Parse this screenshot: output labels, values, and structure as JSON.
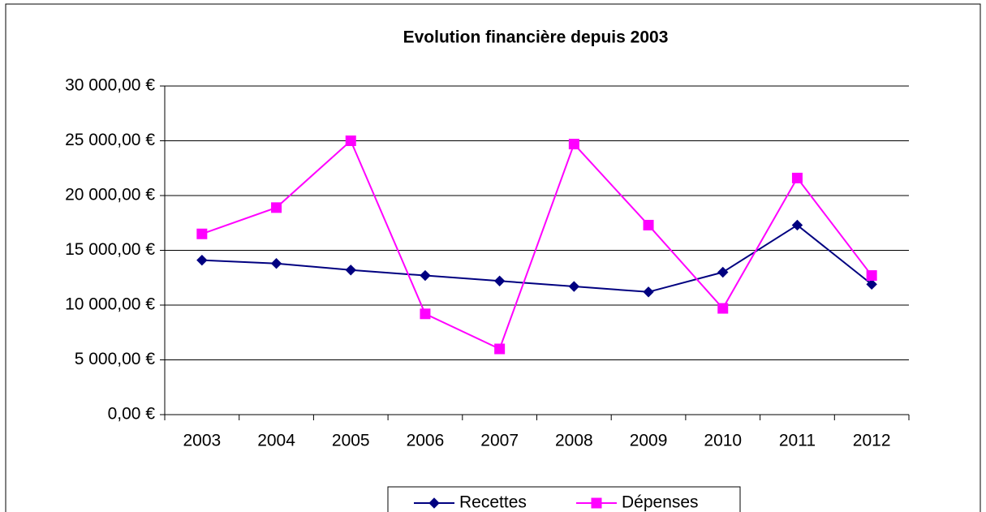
{
  "chart_data": {
    "type": "line",
    "title": "Evolution financière depuis 2003",
    "categories": [
      "2003",
      "2004",
      "2005",
      "2006",
      "2007",
      "2008",
      "2009",
      "2010",
      "2011",
      "2012"
    ],
    "series": [
      {
        "name": "Recettes",
        "color": "#000080",
        "marker": "diamond",
        "values": [
          14100,
          13800,
          13200,
          12700,
          12200,
          11700,
          11200,
          13000,
          17300,
          11900
        ]
      },
      {
        "name": "Dépenses",
        "color": "#ff00ff",
        "marker": "square",
        "values": [
          16500,
          18900,
          25000,
          9200,
          6000,
          24700,
          17300,
          9700,
          21600,
          12700
        ]
      }
    ],
    "ylim": [
      0,
      30000
    ],
    "yticks": [
      {
        "value": 0,
        "label": "0,00 €"
      },
      {
        "value": 5000,
        "label": "5 000,00 €"
      },
      {
        "value": 10000,
        "label": "10 000,00 €"
      },
      {
        "value": 15000,
        "label": "15 000,00 €"
      },
      {
        "value": 20000,
        "label": "20 000,00 €"
      },
      {
        "value": 25000,
        "label": "25 000,00 €"
      },
      {
        "value": 30000,
        "label": "30 000,00 €"
      }
    ],
    "grid": true,
    "legend": "bottom"
  }
}
